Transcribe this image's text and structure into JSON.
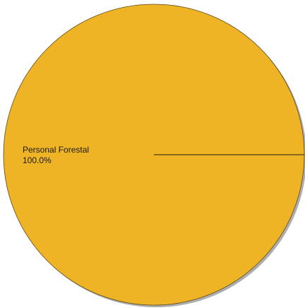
{
  "chart_data": {
    "type": "pie",
    "title": "",
    "slices": [
      {
        "label": "Personal Forestal",
        "value": 100.0,
        "percent_label": "100.0%",
        "color": "#EFB426"
      }
    ],
    "legend": "none",
    "label_placement": "inside-left",
    "shadow": true,
    "edge_color": "#5a4a1a"
  }
}
